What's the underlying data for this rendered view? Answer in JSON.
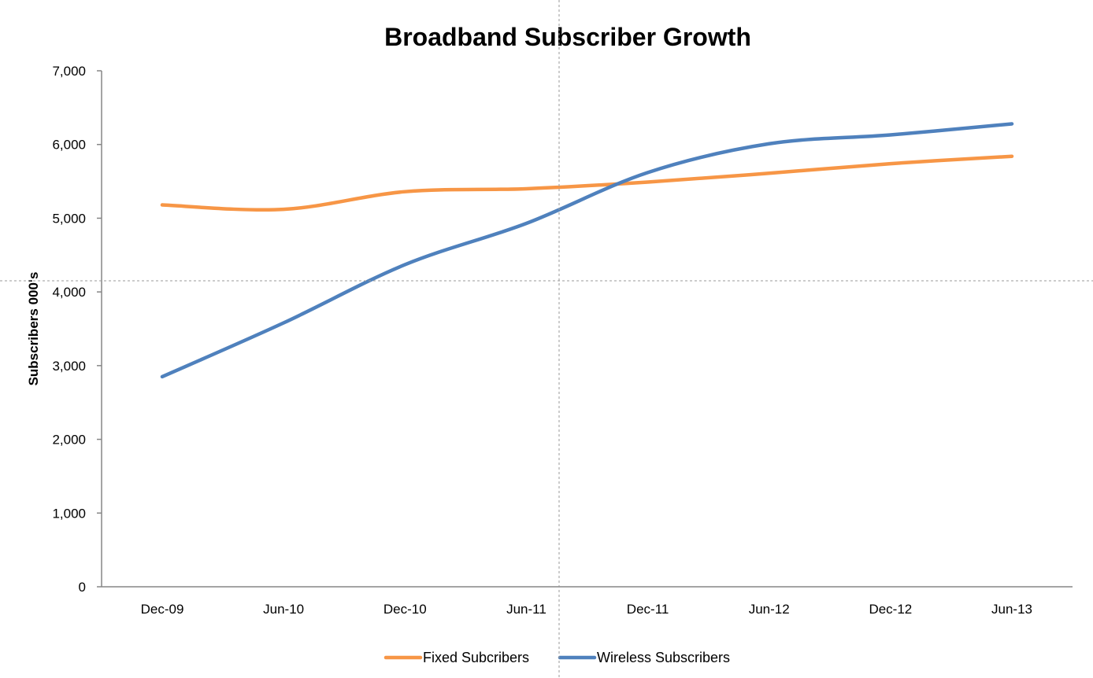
{
  "chart_data": {
    "type": "line",
    "title": "Broadband Subscriber Growth",
    "xlabel": "",
    "ylabel": "Subscribers 000's",
    "categories": [
      "Dec-09",
      "Jun-10",
      "Dec-10",
      "Jun-11",
      "Dec-11",
      "Jun-12",
      "Dec-12",
      "Jun-13"
    ],
    "ylim": [
      0,
      7000
    ],
    "yticks": [
      0,
      1000,
      2000,
      3000,
      4000,
      5000,
      6000,
      7000
    ],
    "ytick_labels": [
      "0",
      "1,000",
      "2,000",
      "3,000",
      "4,000",
      "5,000",
      "6,000",
      "7,000"
    ],
    "grid": false,
    "legend_position": "bottom",
    "series": [
      {
        "name": "Fixed Subcribers",
        "color": "#F79646",
        "values": [
          5180,
          5120,
          5360,
          5400,
          5490,
          5610,
          5740,
          5840
        ]
      },
      {
        "name": "Wireless Subscribers",
        "color": "#4F81BD",
        "values": [
          2850,
          3580,
          4370,
          4930,
          5620,
          6010,
          6130,
          6280
        ]
      }
    ]
  }
}
